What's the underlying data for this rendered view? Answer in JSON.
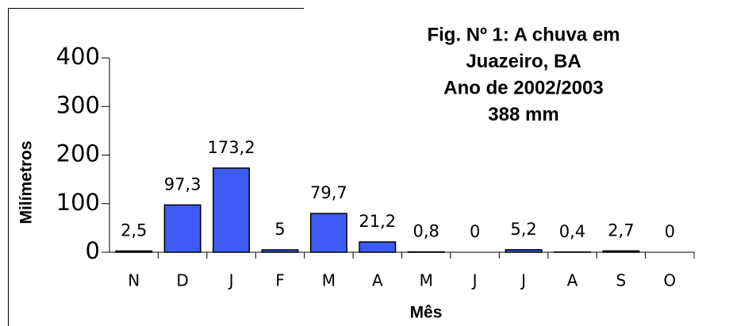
{
  "chart_data": {
    "type": "bar",
    "title": [
      "Fig. Nº 1: A chuva em",
      "Juazeiro, BA",
      "Ano de 2002/2003",
      "388 mm"
    ],
    "x_label": "Mês",
    "y_label": "Milímetros",
    "categories": [
      "N",
      "D",
      "J",
      "F",
      "M",
      "A",
      "M",
      "J",
      "J",
      "A",
      "S",
      "O"
    ],
    "values": [
      2.5,
      97.3,
      173.2,
      5,
      79.7,
      21.2,
      0.8,
      0,
      5.2,
      0.4,
      2.7,
      0
    ],
    "value_labels": [
      "2,5",
      "97,3",
      "173,2",
      "5",
      "79,7",
      "21,2",
      "0,8",
      "0",
      "5,2",
      "0,4",
      "2,7",
      "0"
    ],
    "color": "#3d5cf5",
    "ylim": [
      0,
      400
    ],
    "yticks": [
      0,
      100,
      200,
      300,
      400
    ],
    "grid": false
  }
}
